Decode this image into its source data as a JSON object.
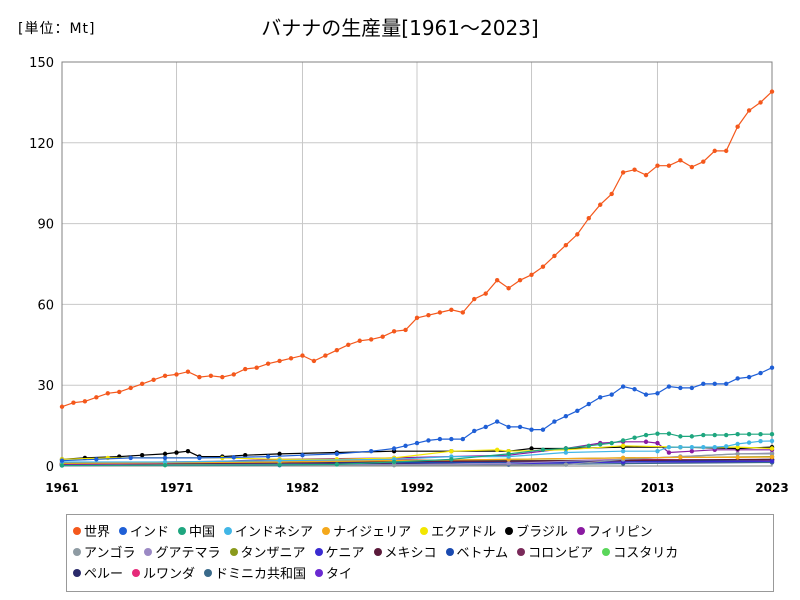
{
  "unit_label": "[単位：Mt]",
  "chart_data": {
    "type": "line",
    "title": "バナナの生産量[1961～2023]",
    "xlabel": "",
    "ylabel": "",
    "xlim": [
      1961,
      2023
    ],
    "ylim": [
      0,
      150
    ],
    "x_ticks": [
      "1961",
      "1971",
      "1982",
      "1992",
      "2002",
      "2013",
      "2023"
    ],
    "y_ticks": [
      "0",
      "30",
      "60",
      "90",
      "120",
      "150"
    ],
    "grid": true,
    "legend_position": "bottom",
    "series": [
      {
        "name": "世界",
        "color": "#f4581c",
        "points": [
          [
            1961,
            22
          ],
          [
            1962,
            23.5
          ],
          [
            1963,
            24
          ],
          [
            1964,
            25.5
          ],
          [
            1965,
            27
          ],
          [
            1966,
            27.5
          ],
          [
            1967,
            29
          ],
          [
            1968,
            30.5
          ],
          [
            1969,
            32
          ],
          [
            1970,
            33.5
          ],
          [
            1971,
            34
          ],
          [
            1972,
            35
          ],
          [
            1973,
            33
          ],
          [
            1974,
            33.5
          ],
          [
            1975,
            33
          ],
          [
            1976,
            34
          ],
          [
            1977,
            36
          ],
          [
            1978,
            36.5
          ],
          [
            1979,
            38
          ],
          [
            1980,
            39
          ],
          [
            1981,
            40
          ],
          [
            1982,
            41
          ],
          [
            1983,
            39
          ],
          [
            1984,
            41
          ],
          [
            1985,
            43
          ],
          [
            1986,
            45
          ],
          [
            1987,
            46.5
          ],
          [
            1988,
            47
          ],
          [
            1989,
            48
          ],
          [
            1990,
            50
          ],
          [
            1991,
            50.5
          ],
          [
            1992,
            55
          ],
          [
            1993,
            56
          ],
          [
            1994,
            57
          ],
          [
            1995,
            58
          ],
          [
            1996,
            57
          ],
          [
            1997,
            62
          ],
          [
            1998,
            64
          ],
          [
            1999,
            69
          ],
          [
            2000,
            66
          ],
          [
            2001,
            69
          ],
          [
            2002,
            71
          ],
          [
            2003,
            74
          ],
          [
            2004,
            78
          ],
          [
            2005,
            82
          ],
          [
            2006,
            86
          ],
          [
            2007,
            92
          ],
          [
            2008,
            97
          ],
          [
            2009,
            101
          ],
          [
            2010,
            109
          ],
          [
            2011,
            110
          ],
          [
            2012,
            108
          ],
          [
            2013,
            111.5
          ],
          [
            2014,
            111.5
          ],
          [
            2015,
            113.5
          ],
          [
            2016,
            111
          ],
          [
            2017,
            113
          ],
          [
            2018,
            117
          ],
          [
            2019,
            117
          ],
          [
            2020,
            126
          ],
          [
            2021,
            132
          ],
          [
            2022,
            135
          ],
          [
            2023,
            139
          ]
        ]
      },
      {
        "name": "インド",
        "color": "#1f5fd6",
        "points": [
          [
            1961,
            2
          ],
          [
            1964,
            2.5
          ],
          [
            1967,
            3
          ],
          [
            1970,
            3
          ],
          [
            1973,
            3
          ],
          [
            1976,
            3.2
          ],
          [
            1979,
            3.5
          ],
          [
            1982,
            4
          ],
          [
            1985,
            4.5
          ],
          [
            1988,
            5.5
          ],
          [
            1990,
            6.5
          ],
          [
            1991,
            7.5
          ],
          [
            1992,
            8.5
          ],
          [
            1993,
            9.5
          ],
          [
            1994,
            10
          ],
          [
            1995,
            10
          ],
          [
            1996,
            10
          ],
          [
            1997,
            13
          ],
          [
            1998,
            14.5
          ],
          [
            1999,
            16.5
          ],
          [
            2000,
            14.5
          ],
          [
            2001,
            14.5
          ],
          [
            2002,
            13.5
          ],
          [
            2003,
            13.5
          ],
          [
            2004,
            16.5
          ],
          [
            2005,
            18.5
          ],
          [
            2006,
            20.5
          ],
          [
            2007,
            23
          ],
          [
            2008,
            25.5
          ],
          [
            2009,
            26.5
          ],
          [
            2010,
            29.5
          ],
          [
            2011,
            28.5
          ],
          [
            2012,
            26.5
          ],
          [
            2013,
            27
          ],
          [
            2014,
            29.5
          ],
          [
            2015,
            29
          ],
          [
            2016,
            29
          ],
          [
            2017,
            30.5
          ],
          [
            2018,
            30.5
          ],
          [
            2019,
            30.5
          ],
          [
            2020,
            32.5
          ],
          [
            2021,
            33
          ],
          [
            2022,
            34.5
          ],
          [
            2023,
            36.5
          ]
        ]
      },
      {
        "name": "中国",
        "color": "#1ea67f",
        "points": [
          [
            1961,
            0.2
          ],
          [
            1970,
            0.3
          ],
          [
            1980,
            0.4
          ],
          [
            1985,
            0.6
          ],
          [
            1990,
            1.5
          ],
          [
            1995,
            2.5
          ],
          [
            2000,
            4.5
          ],
          [
            2003,
            6
          ],
          [
            2005,
            6.5
          ],
          [
            2007,
            7.5
          ],
          [
            2008,
            8
          ],
          [
            2009,
            8.5
          ],
          [
            2010,
            9.5
          ],
          [
            2011,
            10.5
          ],
          [
            2012,
            11.5
          ],
          [
            2013,
            12
          ],
          [
            2014,
            12
          ],
          [
            2015,
            11
          ],
          [
            2016,
            11
          ],
          [
            2017,
            11.5
          ],
          [
            2018,
            11.5
          ],
          [
            2019,
            11.5
          ],
          [
            2020,
            11.8
          ],
          [
            2021,
            11.8
          ],
          [
            2022,
            11.8
          ],
          [
            2023,
            11.8
          ]
        ]
      },
      {
        "name": "インドネシア",
        "color": "#41b6e6",
        "points": [
          [
            1961,
            1.5
          ],
          [
            1970,
            1.5
          ],
          [
            1980,
            2
          ],
          [
            1990,
            2.5
          ],
          [
            1995,
            3.5
          ],
          [
            2000,
            3.5
          ],
          [
            2005,
            5
          ],
          [
            2010,
            5.5
          ],
          [
            2013,
            5.5
          ],
          [
            2014,
            7
          ],
          [
            2015,
            7
          ],
          [
            2016,
            7
          ],
          [
            2017,
            7
          ],
          [
            2018,
            7
          ],
          [
            2019,
            7.3
          ],
          [
            2020,
            8.2
          ],
          [
            2021,
            8.7
          ],
          [
            2022,
            9.2
          ],
          [
            2023,
            9.3
          ]
        ]
      },
      {
        "name": "ナイジェリア",
        "color": "#f4a81c",
        "points": [
          [
            1961,
            1
          ],
          [
            1970,
            1.2
          ],
          [
            1980,
            1.5
          ],
          [
            1990,
            2
          ],
          [
            2000,
            2.5
          ],
          [
            2010,
            3
          ],
          [
            2015,
            3.2
          ],
          [
            2020,
            3.2
          ],
          [
            2023,
            3.3
          ]
        ]
      },
      {
        "name": "エクアドル",
        "color": "#f2e600",
        "points": [
          [
            1961,
            2.5
          ],
          [
            1965,
            3
          ],
          [
            1970,
            3
          ],
          [
            1975,
            3
          ],
          [
            1980,
            2.5
          ],
          [
            1985,
            2.5
          ],
          [
            1990,
            3
          ],
          [
            1995,
            5.5
          ],
          [
            1999,
            6
          ],
          [
            2000,
            5.5
          ],
          [
            2005,
            6
          ],
          [
            2010,
            7.5
          ],
          [
            2015,
            7
          ],
          [
            2020,
            7
          ],
          [
            2023,
            6.5
          ]
        ]
      },
      {
        "name": "ブラジル",
        "color": "#000000",
        "points": [
          [
            1961,
            2.5
          ],
          [
            1963,
            3
          ],
          [
            1966,
            3.5
          ],
          [
            1968,
            4
          ],
          [
            1970,
            4.5
          ],
          [
            1971,
            5
          ],
          [
            1972,
            5.5
          ],
          [
            1973,
            3.5
          ],
          [
            1975,
            3.5
          ],
          [
            1977,
            4
          ],
          [
            1980,
            4.5
          ],
          [
            1985,
            5
          ],
          [
            1990,
            5.5
          ],
          [
            1995,
            5.5
          ],
          [
            2000,
            5.5
          ],
          [
            2002,
            6.5
          ],
          [
            2005,
            6.5
          ],
          [
            2010,
            7
          ],
          [
            2015,
            7
          ],
          [
            2020,
            6.5
          ],
          [
            2023,
            7
          ]
        ]
      },
      {
        "name": "フィリピン",
        "color": "#8a1aa1",
        "points": [
          [
            1961,
            0.5
          ],
          [
            1970,
            1
          ],
          [
            1980,
            2.5
          ],
          [
            1990,
            3
          ],
          [
            2000,
            4
          ],
          [
            2005,
            6.5
          ],
          [
            2008,
            8.5
          ],
          [
            2010,
            9
          ],
          [
            2012,
            9
          ],
          [
            2013,
            8.5
          ],
          [
            2014,
            5
          ],
          [
            2016,
            5.5
          ],
          [
            2018,
            6
          ],
          [
            2020,
            6
          ],
          [
            2023,
            6
          ]
        ]
      },
      {
        "name": "アンゴラ",
        "color": "#8e9ba3",
        "points": [
          [
            1961,
            0.3
          ],
          [
            1990,
            0.3
          ],
          [
            2005,
            0.5
          ],
          [
            2010,
            2.5
          ],
          [
            2015,
            3.5
          ],
          [
            2020,
            4.5
          ],
          [
            2023,
            4.5
          ]
        ]
      },
      {
        "name": "グアテマラ",
        "color": "#9b89c4",
        "points": [
          [
            1961,
            0.3
          ],
          [
            1980,
            0.5
          ],
          [
            1990,
            0.5
          ],
          [
            2000,
            1
          ],
          [
            2010,
            2.5
          ],
          [
            2015,
            3.5
          ],
          [
            2020,
            4.5
          ],
          [
            2023,
            4.8
          ]
        ]
      },
      {
        "name": "タンザニア",
        "color": "#8a9a1c",
        "points": [
          [
            1961,
            1
          ],
          [
            1980,
            1.5
          ],
          [
            1990,
            2
          ],
          [
            2000,
            2.5
          ],
          [
            2010,
            3
          ],
          [
            2023,
            3.5
          ]
        ]
      },
      {
        "name": "ケニア",
        "color": "#3a2bd1",
        "points": [
          [
            1961,
            0.2
          ],
          [
            1980,
            0.3
          ],
          [
            2000,
            0.8
          ],
          [
            2010,
            1.5
          ],
          [
            2023,
            1.8
          ]
        ]
      },
      {
        "name": "メキシコ",
        "color": "#5a1a3a",
        "points": [
          [
            1961,
            0.7
          ],
          [
            1980,
            1.3
          ],
          [
            1990,
            1.7
          ],
          [
            2000,
            1.9
          ],
          [
            2010,
            2.1
          ],
          [
            2023,
            2.5
          ]
        ]
      },
      {
        "name": "ベトナム",
        "color": "#1a4ab0",
        "points": [
          [
            1961,
            1
          ],
          [
            1980,
            1.2
          ],
          [
            1990,
            1.3
          ],
          [
            2000,
            1.3
          ],
          [
            2010,
            1.5
          ],
          [
            2023,
            2.5
          ]
        ]
      },
      {
        "name": "コロンビア",
        "color": "#7a2a5a",
        "points": [
          [
            1961,
            0.7
          ],
          [
            1980,
            1
          ],
          [
            1990,
            1.2
          ],
          [
            2000,
            1.5
          ],
          [
            2010,
            2
          ],
          [
            2023,
            2.3
          ]
        ]
      },
      {
        "name": "コスタリカ",
        "color": "#5ad65a",
        "points": [
          [
            1961,
            0.4
          ],
          [
            1980,
            1
          ],
          [
            1990,
            1.7
          ],
          [
            2000,
            2.1
          ],
          [
            2010,
            2
          ],
          [
            2023,
            2.3
          ]
        ]
      },
      {
        "name": "ペルー",
        "color": "#2a2a6a",
        "points": [
          [
            1961,
            0.4
          ],
          [
            1980,
            0.6
          ],
          [
            1990,
            0.8
          ],
          [
            2000,
            1.5
          ],
          [
            2010,
            1.9
          ],
          [
            2023,
            2.3
          ]
        ]
      },
      {
        "name": "ルワンダ",
        "color": "#e62a7a",
        "points": [
          [
            1961,
            1
          ],
          [
            1980,
            2
          ],
          [
            1990,
            2.5
          ],
          [
            2000,
            1.5
          ],
          [
            2010,
            2.5
          ],
          [
            2023,
            2
          ]
        ]
      },
      {
        "name": "ドミニカ共和国",
        "color": "#3a6a8a",
        "points": [
          [
            1961,
            0.3
          ],
          [
            1980,
            0.4
          ],
          [
            1990,
            0.4
          ],
          [
            2000,
            0.5
          ],
          [
            2010,
            0.9
          ],
          [
            2023,
            1.3
          ]
        ]
      },
      {
        "name": "タイ",
        "color": "#6a2ad1",
        "points": [
          [
            1961,
            1
          ],
          [
            1980,
            1.5
          ],
          [
            1990,
            1.6
          ],
          [
            2000,
            1.7
          ],
          [
            2010,
            1.5
          ],
          [
            2023,
            1.4
          ]
        ]
      }
    ]
  }
}
